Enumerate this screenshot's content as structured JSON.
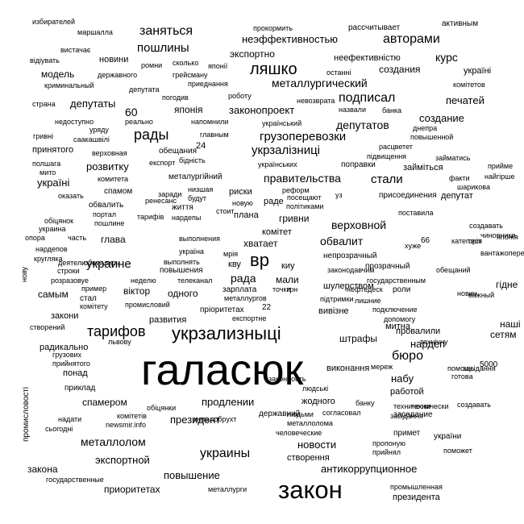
{
  "text_color": "#000000",
  "background": "#ffffff",
  "words": [
    "галасюк",
    "закон",
    "укрзализныцi",
    "тарифов",
    "вр",
    "ляшко",
    "рады",
    "рада",
    "заняться",
    "пошлины",
    "авторами",
    "неэффективностью",
    "экспортно",
    "неефективністю",
    "курс",
    "металлургический",
    "подписал",
    "депутатов",
    "депутаты",
    "укрзалізниці",
    "грузоперевозки",
    "україні",
    "модель",
    "новини",
    "создания",
    "печатей",
    "создание",
    "стали",
    "правительства",
    "верховной",
    "обвалит",
    "украине",
    "украины",
    "металлолом",
    "экспортной",
    "президент",
    "продлении",
    "новости",
    "антикоррупционное",
    "повышение",
    "приоритетах",
    "бюро",
    "нардеп",
    "сетям",
    "наші",
    "штрафы",
    "развития",
    "віктор",
    "одного",
    "самым",
    "закони",
    "глава",
    "хватает",
    "плана",
    "гривни",
    "комітет",
    "розвитку",
    "україні",
    "японія",
    "законопроект",
    "заседание",
    "виконання",
    "набу",
    "работой",
    "понад",
    "радикально",
    "спамером",
    "державний",
    "митна",
    "5000",
    "60",
    "24",
    "22",
    "66",
    "избирателей",
    "маршалла",
    "прокормить",
    "рассчитывает",
    "активным",
    "вистачає",
    "відіувать",
    "ромни",
    "сколько",
    "японії",
    "грейсману",
    "приеднання",
    "державного",
    "останні",
    "криминальный",
    "депутата",
    "комітетов",
    "погодив",
    "роботу",
    "невозврата",
    "назвали",
    "банка",
    "страна",
    "реально",
    "напомнили",
    "український",
    "українських",
    "повышенной",
    "днепра",
    "недоступно",
    "саакашвілі",
    "гривні",
    "уряду",
    "главным",
    "принятого",
    "верховная",
    "обещания",
    "бідність",
    "експорт",
    "поправки",
    "займіться",
    "расцветет",
    "займатись",
    "підвищення",
    "прийме",
    "найгірше",
    "факти",
    "шарикова",
    "мито",
    "полшага",
    "металургійний",
    "комитета",
    "спамом",
    "низшая",
    "будут",
    "реформ",
    "посещают",
    "уз",
    "присоединения",
    "депутат",
    "оказать",
    "політиками",
    "життя",
    "риски",
    "новую",
    "раде",
    "обвалить",
    "портал",
    "пошлине",
    "тарифів",
    "ренесанс",
    "стоит",
    "поставила",
    "заради",
    "нардепы",
    "выполнения",
    "опора",
    "часть",
    "нардепов",
    "кругляка",
    "строки",
    "розразовуе",
    "выполнять",
    "україна",
    "грн",
    "мали",
    "киу",
    "кву",
    "мрія",
    "повышения",
    "зарплата",
    "металлургов",
    "точки",
    "государственным",
    "нефтедеск",
    "телеканал",
    "пример",
    "создавать",
    "неделю",
    "стал",
    "промисловий",
    "пріоритетах",
    "експортне",
    "лишние",
    "шулерством",
    "підтримки",
    "вивізне",
    "прозрачный",
    "непрозрачный",
    "законодавчим",
    "роли",
    "подключение",
    "допомогу",
    "провалили",
    "вантажоперевезення",
    "чиновники",
    "гідне",
    "категорія",
    "тест",
    "японія",
    "важный",
    "новин",
    "хуже",
    "обещаний",
    "создавать",
    "грузових",
    "прийнятого",
    "львову",
    "приклад",
    "засідання",
    "помощь",
    "готова",
    "мереж",
    "технически",
    "технічну",
    "обіцянки",
    "надати",
    "сьогодні",
    "newsmir.info",
    "комітетів",
    "законность",
    "жодного",
    "металобрухт",
    "людські",
    "банку",
    "согласовал",
    "металлолома",
    "людьми",
    "человеческие",
    "засідання",
    "технически",
    "примет",
    "україни",
    "пропоную",
    "поможет",
    "прийнял",
    "створення",
    "закона",
    "государственные",
    "металлурги",
    "промышленная",
    "президента",
    "промисловості",
    "створений",
    "комітету",
    "деятели",
    "обіцянок",
    "обевались",
    "украина",
    "нову",
    "глазами"
  ]
}
